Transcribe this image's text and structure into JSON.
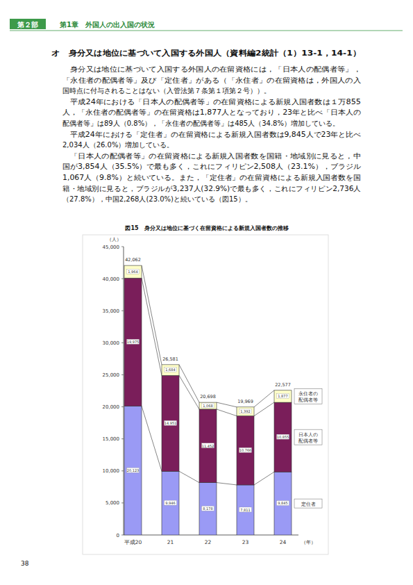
{
  "header": {
    "part": "第２部",
    "chapter": "第1章　外国人の出入国の状況"
  },
  "section_title": "オ　身分又は地位に基づいて入国する外国人（資料編2統計（1）13-1，14-1）",
  "paragraphs": [
    [
      "身分又は地位に基づいて入国する外国人の在留資格には，「日本人の配偶者等」，",
      "「永住者の配偶者等」及び「定住者」がある（「永住者」の在留資格は，外国人の入",
      "国時点に付与されることはない（入管法第７条第１項第２号））。"
    ],
    [
      "平成24年における「日本人の配偶者等」の在留資格による新規入国者数は１万855",
      "人，「永住者の配偶者等」の在留資格は1,877人となっており，23年と比べ「日本人の",
      "配偶者等」は89人（0.8%），「永住者の配偶者等」は485人（34.8%）増加している。"
    ],
    [
      "平成24年における「定住者」の在留資格による新規入国者数は9,845人で23年と比べ",
      "2,034人（26.0%）増加している。"
    ],
    [
      "「日本人の配偶者等」の在留資格による新規入国者数を国籍・地域別に見ると，中",
      "国が3,854人（35.5%）で最も多く，これにフィリピン2,508人（23.1%），ブラジル",
      "1,067人（9.8%）と続いている。また，「定住者」の在留資格による新規入国者数を国",
      "籍・地域別に見ると，ブラジルが3,237人(32.9%)で最も多く，これにフィリピン2,736人",
      "（27.8%），中国2,268人(23.0%)と続いている（図15）。"
    ]
  ],
  "chart_data": {
    "type": "bar",
    "stacked": true,
    "data_labels": true,
    "grid": false,
    "legend": "right",
    "title": "図15　身分又は地位に基づく在留資格による新規入国者数の推移",
    "y_label": "（人）",
    "x_label": "（年）",
    "categories": [
      "平成20",
      "21",
      "22",
      "23",
      "24"
    ],
    "series": [
      {
        "name": "定住者",
        "color": "#9a9af5",
        "values": [
          20123,
          9946,
          8178,
          7811,
          9845
        ],
        "value_labels": [
          "20,123",
          "9,946",
          "8,178",
          "7,811",
          "9,845"
        ]
      },
      {
        "name": "日本人の\n配偶者等",
        "color": "#7a1e5a",
        "values": [
          19975,
          14951,
          11452,
          10766,
          10855
        ],
        "value_labels": [
          "19,975",
          "14,951",
          "11,452",
          "10,766",
          "10,855"
        ]
      },
      {
        "name": "永住者の\n配偶者等",
        "color": "#ffffc8",
        "values": [
          1964,
          1684,
          1068,
          1392,
          1877
        ],
        "value_labels": [
          "1,964",
          "1,684",
          "1,068",
          "1,392",
          "1,877"
        ]
      }
    ],
    "totals": [
      42062,
      26581,
      20698,
      19969,
      22577
    ],
    "total_labels": [
      "42,062",
      "26,581",
      "20,698",
      "19,969",
      "22,577"
    ],
    "ylim": [
      0,
      45000
    ],
    "yticks": [
      0,
      {
        "value": 5000,
        "label": "5,000"
      },
      {
        "value": 10000,
        "label": "10,000"
      },
      {
        "value": 15000,
        "label": "15,000"
      },
      {
        "value": 20000,
        "label": "20,000"
      },
      {
        "value": 25000,
        "label": "25,000"
      },
      {
        "value": 30000,
        "label": "30,000"
      },
      {
        "value": 35000,
        "label": "35,000"
      },
      {
        "value": 40000,
        "label": "40,000"
      },
      {
        "value": 45000,
        "label": "45,000"
      }
    ]
  },
  "page_number": "38"
}
